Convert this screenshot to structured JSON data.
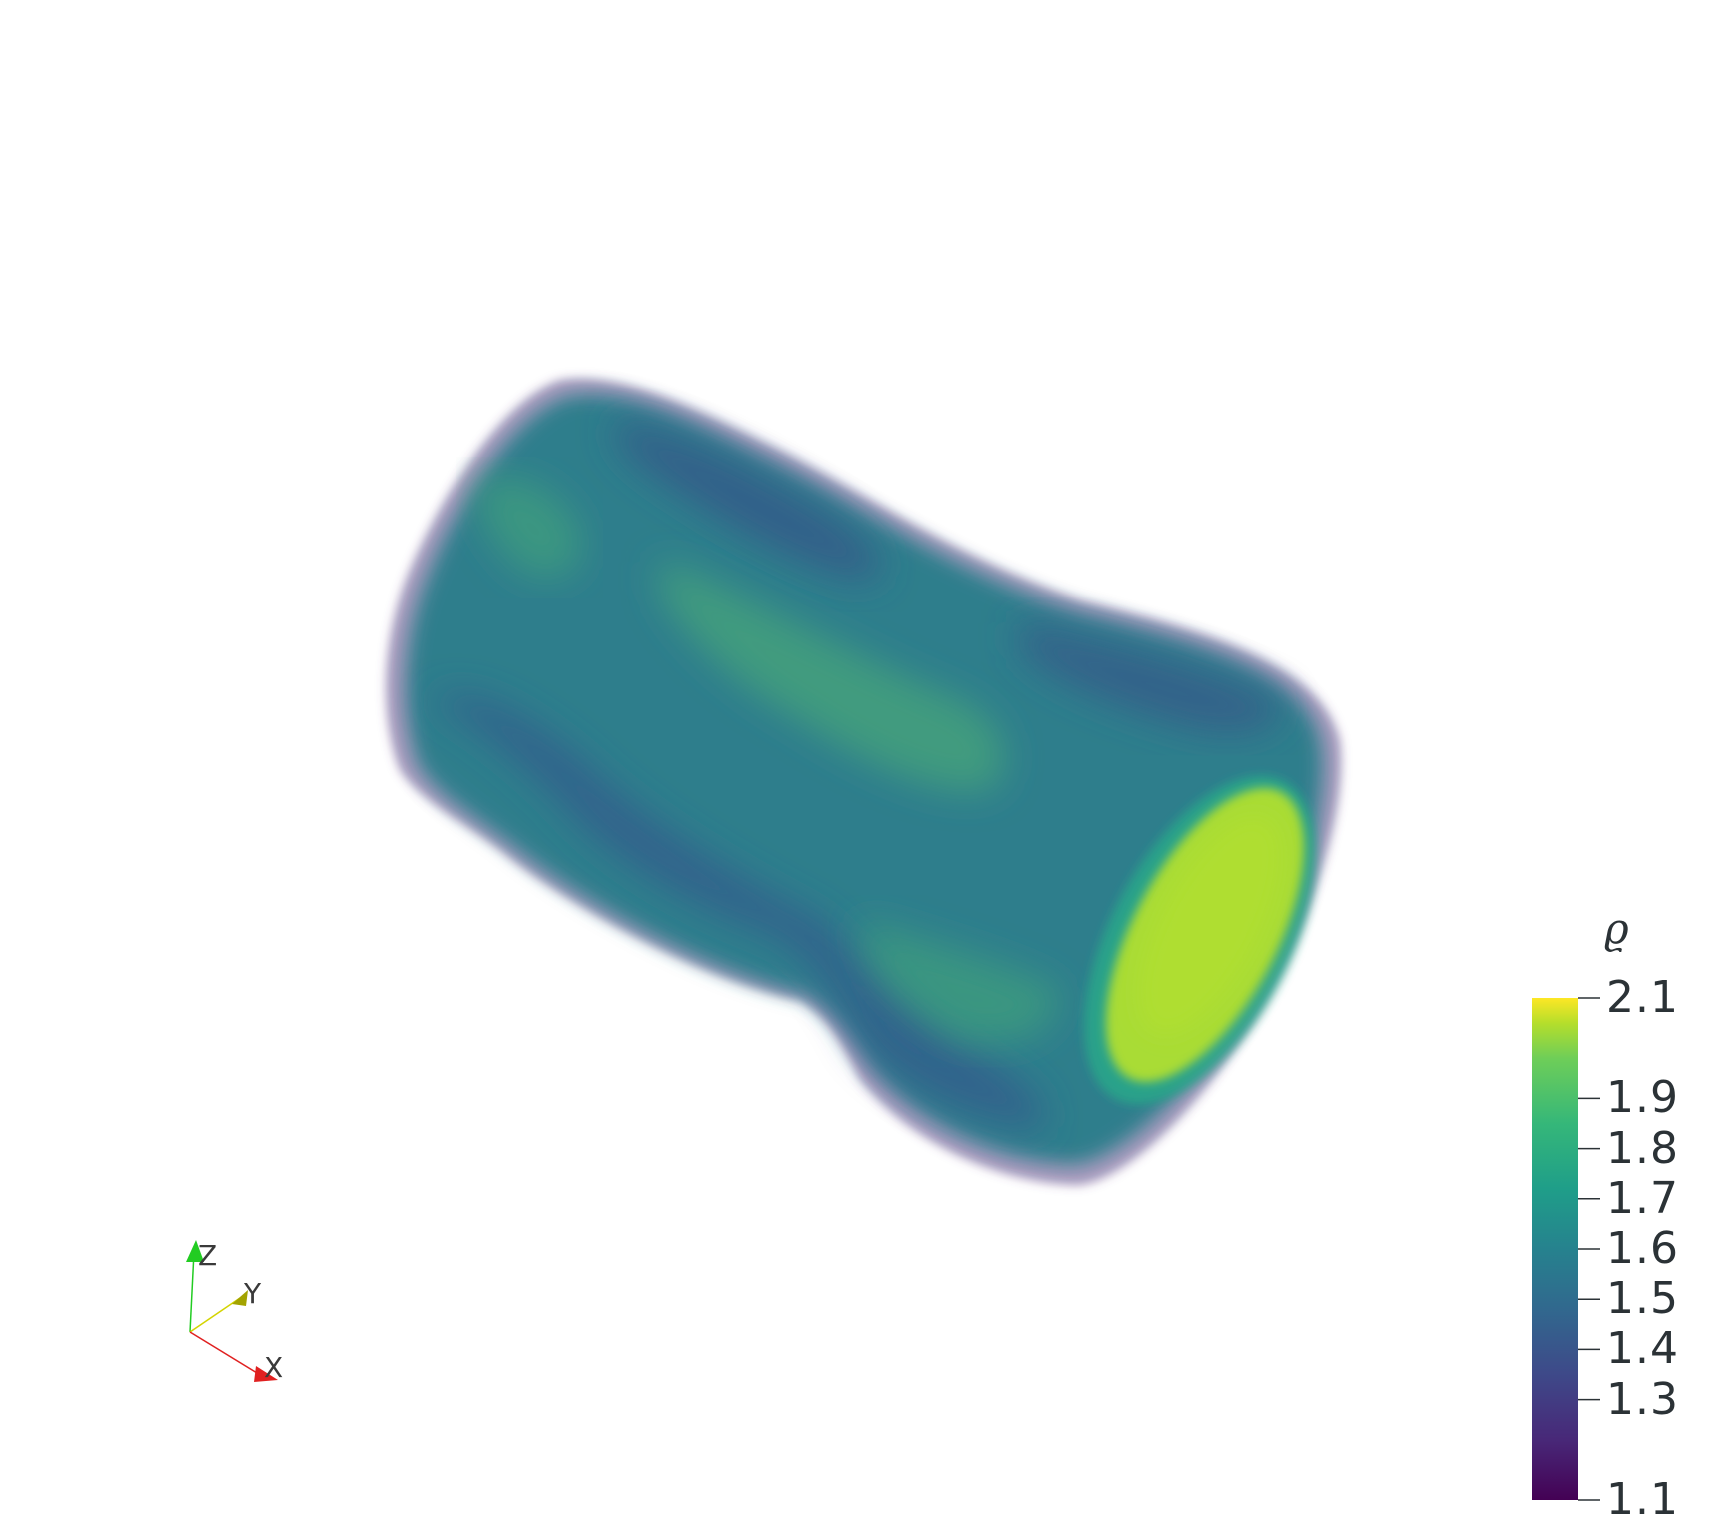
{
  "scalar_bar": {
    "title": "ϱ",
    "ticks": [
      {
        "label": "2.1",
        "value": 2.1
      },
      {
        "label": "1.9",
        "value": 1.9
      },
      {
        "label": "1.8",
        "value": 1.8
      },
      {
        "label": "1.7",
        "value": 1.7
      },
      {
        "label": "1.6",
        "value": 1.6
      },
      {
        "label": "1.5",
        "value": 1.5
      },
      {
        "label": "1.4",
        "value": 1.4
      },
      {
        "label": "1.3",
        "value": 1.3
      },
      {
        "label": "1.1",
        "value": 1.1
      }
    ],
    "range": [
      1.1,
      2.1
    ],
    "colormap": "viridis",
    "colors": [
      "#440154",
      "#3b528b",
      "#21918c",
      "#5ec962",
      "#fde725"
    ]
  },
  "axes_triad": {
    "z_label": "Z",
    "y_label": "Y",
    "x_label": "X",
    "z_color": "#22cc22",
    "y_color": "#d4d400",
    "x_color": "#e02020"
  }
}
